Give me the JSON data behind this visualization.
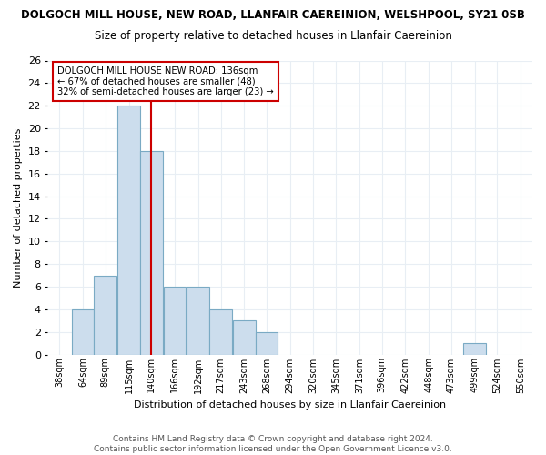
{
  "title1": "DOLGOCH MILL HOUSE, NEW ROAD, LLANFAIR CAEREINION, WELSHPOOL, SY21 0SB",
  "title2": "Size of property relative to detached houses in Llanfair Caereinion",
  "xlabel": "Distribution of detached houses by size in Llanfair Caereinion",
  "ylabel": "Number of detached properties",
  "footer1": "Contains HM Land Registry data © Crown copyright and database right 2024.",
  "footer2": "Contains public sector information licensed under the Open Government Licence v3.0.",
  "bin_labels": [
    "38sqm",
    "64sqm",
    "89sqm",
    "115sqm",
    "140sqm",
    "166sqm",
    "192sqm",
    "217sqm",
    "243sqm",
    "268sqm",
    "294sqm",
    "320sqm",
    "345sqm",
    "371sqm",
    "396sqm",
    "422sqm",
    "448sqm",
    "473sqm",
    "499sqm",
    "524sqm",
    "550sqm"
  ],
  "bin_centers": [
    38,
    64,
    89,
    115,
    140,
    166,
    192,
    217,
    243,
    268,
    294,
    320,
    345,
    371,
    396,
    422,
    448,
    473,
    499,
    524,
    550
  ],
  "values": [
    0,
    4,
    7,
    22,
    18,
    6,
    6,
    4,
    3,
    2,
    0,
    0,
    0,
    0,
    0,
    0,
    0,
    0,
    1,
    0,
    0
  ],
  "bar_color": "#ccdded",
  "bar_edge_color": "#7aaac4",
  "vline_x_index": 4,
  "vline_color": "#cc0000",
  "ylim": [
    0,
    26
  ],
  "yticks": [
    0,
    2,
    4,
    6,
    8,
    10,
    12,
    14,
    16,
    18,
    20,
    22,
    24,
    26
  ],
  "annotation_line1": "DOLGOCH MILL HOUSE NEW ROAD: 136sqm",
  "annotation_line2": "← 67% of detached houses are smaller (48)",
  "annotation_line3": "32% of semi-detached houses are larger (23) →",
  "annotation_box_edge": "#cc0000",
  "bg_color": "#ffffff",
  "plot_bg_color": "#ffffff",
  "grid_color": "#e8eef4",
  "title1_fontsize": 8.5,
  "title2_fontsize": 8.5,
  "footer_fontsize": 6.5
}
